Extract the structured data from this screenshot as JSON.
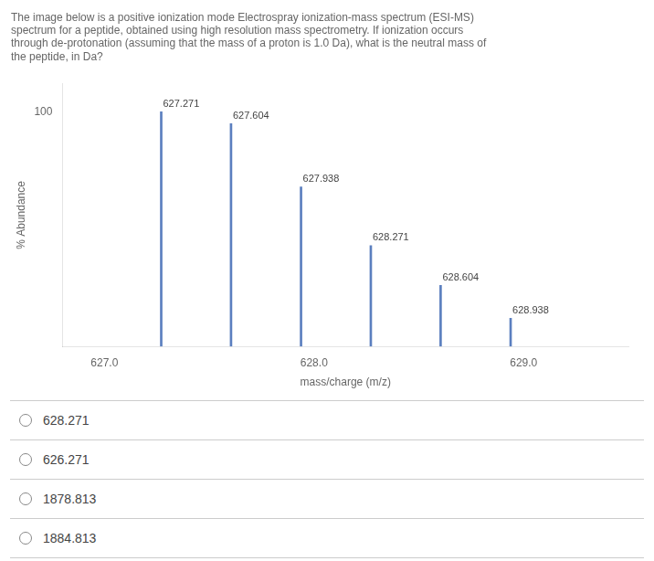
{
  "chart_data": {
    "type": "bar",
    "title": "The image below is a positive ionization mode Electrospray ionization-mass spectrum (ESI-MS)\nspectrum for a peptide, obtained using high resolution mass spectrometry. If ionization occurs\nthrough de-protonation (assuming that the mass of a proton is 1.0 Da), what is the neutral mass of\nthe peptide, in Da?",
    "x": [
      627.271,
      627.604,
      627.938,
      628.271,
      628.604,
      628.938
    ],
    "values": [
      100,
      95,
      68,
      43,
      26,
      12
    ],
    "color": "#5B7FBF",
    "xlim": [
      626.8,
      629.5
    ],
    "ylim": [
      0,
      112
    ],
    "xticks": [
      {
        "value": 627.0,
        "label": "627.0"
      },
      {
        "value": 628.0,
        "label": "628.0"
      },
      {
        "value": 629.0,
        "label": "629.0"
      }
    ],
    "yticks": [
      100
    ],
    "xlabel": "mass/charge (m/z)",
    "ylabel": "% Abundance",
    "data_labels": true,
    "grid": false,
    "annotations": [
      "628.271",
      "626.271",
      "1878.813",
      "1884.813"
    ]
  }
}
